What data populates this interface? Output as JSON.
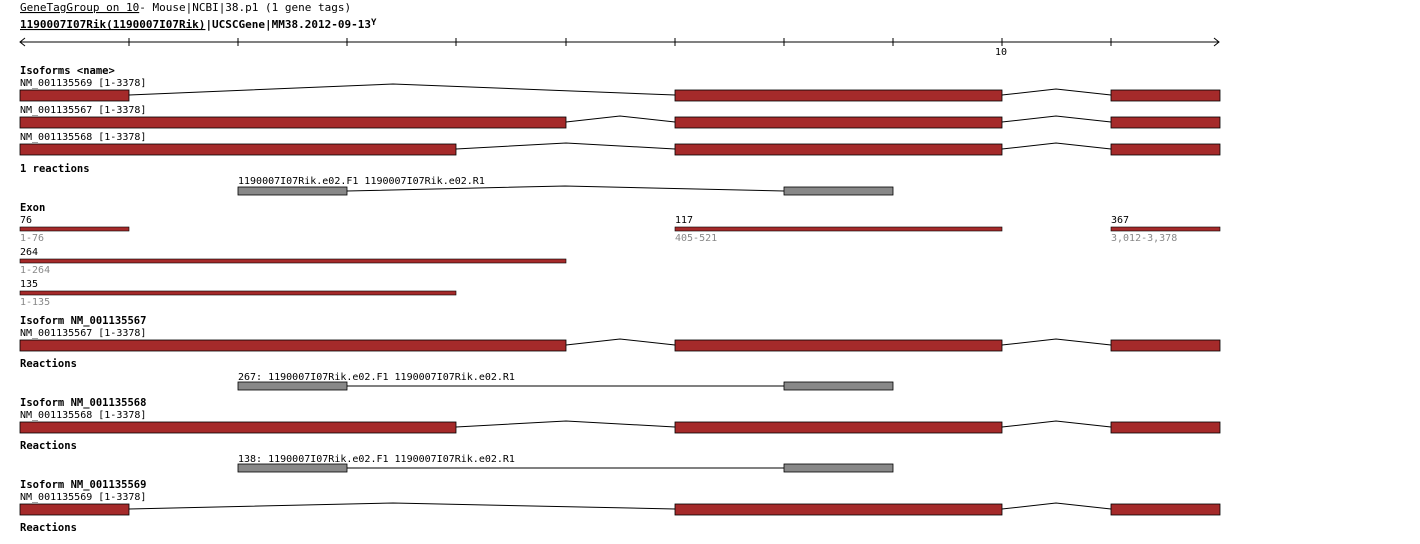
{
  "header": {
    "line1_link": "GeneTagGroup on 10",
    "line1_rest": "- Mouse|NCBI|38.p1 (1 gene tags)",
    "line2_link": "1190007I07Rik(1190007I07Rik)",
    "line2_rest": "|UCSCGene|MM38.2012-09-13",
    "marker": "Y"
  },
  "ruler": {
    "label": "10"
  },
  "colors": {
    "exon": "#a52a2a",
    "primer": "#888888",
    "intron": "#000000"
  },
  "sections": {
    "isoforms": "Isoforms <name>",
    "reactions_count": "1 reactions",
    "exon": "Exon",
    "iso567": "Isoform NM_001135567",
    "iso568": "Isoform NM_001135568",
    "iso569": "Isoform NM_001135569",
    "reactions_a": "Reactions",
    "reactions_b": "Reactions",
    "reactions_c": "Reactions"
  },
  "tracks": {
    "t569": "NM_001135569 [1-3378]",
    "t567": "NM_001135567 [1-3378]",
    "t568": "NM_001135568 [1-3378]",
    "d567": "NM_001135567 [1-3378]",
    "d568": "NM_001135568 [1-3378]",
    "d569": "NM_001135569 [1-3378]"
  },
  "reactions": {
    "main": "1190007I07Rik.e02.F1 1190007I07Rik.e02.R1",
    "r567": "267: 1190007I07Rik.e02.F1 1190007I07Rik.e02.R1",
    "r568": "138: 1190007I07Rik.e02.F1 1190007I07Rik.e02.R1"
  },
  "exons": {
    "e76": {
      "len": "76",
      "range": "1-76"
    },
    "e117": {
      "len": "117",
      "range": "405-521"
    },
    "e367": {
      "len": "367",
      "range": "3,012-3,378"
    },
    "e264": {
      "len": "264",
      "range": "1-264"
    },
    "e135": {
      "len": "135",
      "range": "1-135"
    }
  }
}
